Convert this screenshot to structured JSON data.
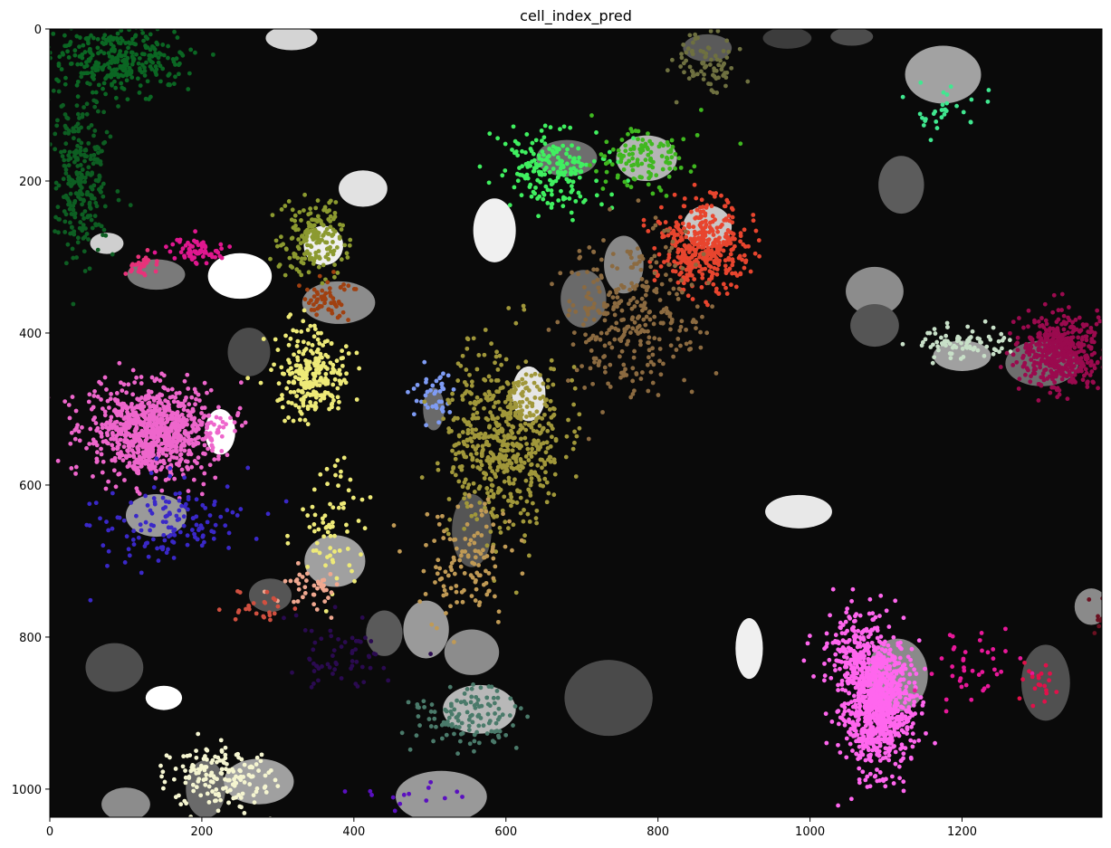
{
  "chart_data": {
    "type": "scatter",
    "title": "cell_index_pred",
    "background_color": "#0a0a0a",
    "xlim": [
      0,
      1384
    ],
    "ylim": [
      1037,
      0
    ],
    "y_inverted": true,
    "grid": false,
    "xticks": [
      0,
      200,
      400,
      600,
      800,
      1000,
      1200
    ],
    "yticks": [
      0,
      200,
      400,
      600,
      800,
      1000
    ],
    "xtick_labels": [
      "0",
      "200",
      "400",
      "600",
      "800",
      "1000",
      "1200"
    ],
    "ytick_labels": [
      "0",
      "200",
      "400",
      "600",
      "800",
      "1000"
    ],
    "cell_masks": [
      {
        "cx": 318,
        "cy": 12,
        "rx": 34,
        "ry": 16,
        "color": "#d4d4d4"
      },
      {
        "cx": 75,
        "cy": 282,
        "rx": 22,
        "ry": 14,
        "color": "#cfcfcf"
      },
      {
        "cx": 140,
        "cy": 323,
        "rx": 38,
        "ry": 20,
        "color": "#7a7a7a"
      },
      {
        "cx": 250,
        "cy": 325,
        "rx": 42,
        "ry": 30,
        "color": "#ffffff"
      },
      {
        "cx": 360,
        "cy": 285,
        "rx": 26,
        "ry": 26,
        "color": "#f0f0f0"
      },
      {
        "cx": 412,
        "cy": 210,
        "rx": 32,
        "ry": 24,
        "color": "#e2e2e2"
      },
      {
        "cx": 380,
        "cy": 360,
        "rx": 48,
        "ry": 28,
        "color": "#8c8c8c"
      },
      {
        "cx": 262,
        "cy": 425,
        "rx": 28,
        "ry": 32,
        "color": "#4a4a4a"
      },
      {
        "cx": 224,
        "cy": 530,
        "rx": 20,
        "ry": 30,
        "color": "#ffffff"
      },
      {
        "cx": 585,
        "cy": 265,
        "rx": 28,
        "ry": 42,
        "color": "#f0f0f0"
      },
      {
        "cx": 680,
        "cy": 170,
        "rx": 40,
        "ry": 24,
        "color": "#6e6e6e"
      },
      {
        "cx": 785,
        "cy": 170,
        "rx": 40,
        "ry": 30,
        "color": "#b5b5b5"
      },
      {
        "cx": 755,
        "cy": 310,
        "rx": 26,
        "ry": 38,
        "color": "#888888"
      },
      {
        "cx": 702,
        "cy": 355,
        "rx": 30,
        "ry": 38,
        "color": "#6a6a6a"
      },
      {
        "cx": 865,
        "cy": 260,
        "rx": 32,
        "ry": 28,
        "color": "#c8c8c8"
      },
      {
        "cx": 865,
        "cy": 25,
        "rx": 32,
        "ry": 18,
        "color": "#5a5a5a"
      },
      {
        "cx": 970,
        "cy": 12,
        "rx": 32,
        "ry": 14,
        "color": "#3c3c3c"
      },
      {
        "cx": 1055,
        "cy": 10,
        "rx": 28,
        "ry": 12,
        "color": "#4c4c4c"
      },
      {
        "cx": 1175,
        "cy": 60,
        "rx": 50,
        "ry": 38,
        "color": "#a2a2a2"
      },
      {
        "cx": 1120,
        "cy": 205,
        "rx": 30,
        "ry": 38,
        "color": "#5c5c5c"
      },
      {
        "cx": 1085,
        "cy": 345,
        "rx": 38,
        "ry": 32,
        "color": "#8c8c8c"
      },
      {
        "cx": 1085,
        "cy": 390,
        "rx": 32,
        "ry": 28,
        "color": "#555555"
      },
      {
        "cx": 1200,
        "cy": 430,
        "rx": 38,
        "ry": 20,
        "color": "#a0a0a0"
      },
      {
        "cx": 1305,
        "cy": 440,
        "rx": 48,
        "ry": 30,
        "color": "#6e6e6e"
      },
      {
        "cx": 505,
        "cy": 500,
        "rx": 14,
        "ry": 28,
        "color": "#6a6a6a"
      },
      {
        "cx": 630,
        "cy": 480,
        "rx": 22,
        "ry": 36,
        "color": "#e6e6e6"
      },
      {
        "cx": 555,
        "cy": 660,
        "rx": 26,
        "ry": 48,
        "color": "#555555"
      },
      {
        "cx": 140,
        "cy": 640,
        "rx": 40,
        "ry": 28,
        "color": "#9a9a9a"
      },
      {
        "cx": 375,
        "cy": 700,
        "rx": 40,
        "ry": 34,
        "color": "#a0a0a0"
      },
      {
        "cx": 290,
        "cy": 745,
        "rx": 28,
        "ry": 22,
        "color": "#555555"
      },
      {
        "cx": 440,
        "cy": 795,
        "rx": 24,
        "ry": 30,
        "color": "#5a5a5a"
      },
      {
        "cx": 495,
        "cy": 790,
        "rx": 30,
        "ry": 38,
        "color": "#9a9a9a"
      },
      {
        "cx": 555,
        "cy": 820,
        "rx": 36,
        "ry": 30,
        "color": "#8c8c8c"
      },
      {
        "cx": 565,
        "cy": 895,
        "rx": 48,
        "ry": 32,
        "color": "#b8b8b8"
      },
      {
        "cx": 735,
        "cy": 880,
        "rx": 58,
        "ry": 50,
        "color": "#4a4a4a"
      },
      {
        "cx": 920,
        "cy": 815,
        "rx": 18,
        "ry": 40,
        "color": "#f0f0f0"
      },
      {
        "cx": 985,
        "cy": 635,
        "rx": 44,
        "ry": 22,
        "color": "#e8e8e8"
      },
      {
        "cx": 1115,
        "cy": 850,
        "rx": 40,
        "ry": 48,
        "color": "#8a8a8a"
      },
      {
        "cx": 1310,
        "cy": 860,
        "rx": 32,
        "ry": 50,
        "color": "#505050"
      },
      {
        "cx": 1370,
        "cy": 760,
        "rx": 22,
        "ry": 24,
        "color": "#8a8a8a"
      },
      {
        "cx": 85,
        "cy": 840,
        "rx": 38,
        "ry": 32,
        "color": "#4e4e4e"
      },
      {
        "cx": 150,
        "cy": 880,
        "rx": 24,
        "ry": 16,
        "color": "#ffffff"
      },
      {
        "cx": 205,
        "cy": 1000,
        "rx": 26,
        "ry": 38,
        "color": "#6a6a6a"
      },
      {
        "cx": 275,
        "cy": 990,
        "rx": 46,
        "ry": 30,
        "color": "#a0a0a0"
      },
      {
        "cx": 100,
        "cy": 1020,
        "rx": 32,
        "ry": 22,
        "color": "#8c8c8c"
      },
      {
        "cx": 515,
        "cy": 1010,
        "rx": 60,
        "ry": 34,
        "color": "#999999"
      }
    ],
    "clusters": [
      {
        "cx": 90,
        "cy": 40,
        "sx": 60,
        "sy": 30,
        "n": 320,
        "color": "#0b6623"
      },
      {
        "cx": 40,
        "cy": 190,
        "sx": 28,
        "sy": 70,
        "n": 280,
        "color": "#0d5e22"
      },
      {
        "cx": 120,
        "cy": 310,
        "sx": 16,
        "sy": 14,
        "n": 30,
        "color": "#e8327a"
      },
      {
        "cx": 195,
        "cy": 292,
        "sx": 26,
        "sy": 12,
        "n": 70,
        "color": "#e0178f"
      },
      {
        "cx": 345,
        "cy": 275,
        "sx": 28,
        "sy": 34,
        "n": 180,
        "color": "#8c9a30"
      },
      {
        "cx": 365,
        "cy": 355,
        "sx": 22,
        "sy": 18,
        "n": 60,
        "color": "#a04010"
      },
      {
        "cx": 345,
        "cy": 455,
        "sx": 30,
        "sy": 36,
        "n": 260,
        "color": "#eeea78"
      },
      {
        "cx": 135,
        "cy": 530,
        "sx": 55,
        "sy": 40,
        "n": 900,
        "color": "#ee66cc"
      },
      {
        "cx": 150,
        "cy": 650,
        "sx": 65,
        "sy": 38,
        "n": 140,
        "color": "#3a28c8"
      },
      {
        "cx": 505,
        "cy": 480,
        "sx": 20,
        "sy": 26,
        "n": 40,
        "color": "#7f9cf5"
      },
      {
        "cx": 600,
        "cy": 540,
        "sx": 50,
        "sy": 75,
        "n": 600,
        "color": "#a0973a"
      },
      {
        "cx": 545,
        "cy": 700,
        "sx": 45,
        "sy": 55,
        "n": 120,
        "color": "#c09a55"
      },
      {
        "cx": 660,
        "cy": 185,
        "sx": 45,
        "sy": 32,
        "n": 200,
        "color": "#40f060"
      },
      {
        "cx": 780,
        "cy": 170,
        "sx": 40,
        "sy": 28,
        "n": 120,
        "color": "#40b820"
      },
      {
        "cx": 860,
        "cy": 285,
        "sx": 38,
        "sy": 38,
        "n": 400,
        "color": "#e8452e"
      },
      {
        "cx": 765,
        "cy": 380,
        "sx": 60,
        "sy": 70,
        "n": 320,
        "color": "#8b6a40"
      },
      {
        "cx": 860,
        "cy": 45,
        "sx": 32,
        "sy": 24,
        "n": 80,
        "color": "#6e7040"
      },
      {
        "cx": 1175,
        "cy": 100,
        "sx": 38,
        "sy": 22,
        "n": 30,
        "color": "#40e890"
      },
      {
        "cx": 1195,
        "cy": 412,
        "sx": 45,
        "sy": 14,
        "n": 80,
        "color": "#c8e0c8"
      },
      {
        "cx": 1330,
        "cy": 425,
        "sx": 35,
        "sy": 30,
        "n": 500,
        "color": "#9a0a4e"
      },
      {
        "cx": 370,
        "cy": 650,
        "sx": 30,
        "sy": 55,
        "n": 70,
        "color": "#eeea78"
      },
      {
        "cx": 345,
        "cy": 730,
        "sx": 28,
        "sy": 18,
        "n": 40,
        "color": "#f0a890"
      },
      {
        "cx": 275,
        "cy": 760,
        "sx": 30,
        "sy": 18,
        "n": 25,
        "color": "#d05040"
      },
      {
        "cx": 380,
        "cy": 820,
        "sx": 45,
        "sy": 35,
        "n": 60,
        "color": "#2a0a50"
      },
      {
        "cx": 1090,
        "cy": 890,
        "sx": 30,
        "sy": 55,
        "n": 900,
        "color": "#ff66ee"
      },
      {
        "cx": 1060,
        "cy": 820,
        "sx": 30,
        "sy": 40,
        "n": 200,
        "color": "#ff66ee"
      },
      {
        "cx": 1210,
        "cy": 840,
        "sx": 40,
        "sy": 30,
        "n": 40,
        "color": "#e8189a"
      },
      {
        "cx": 1300,
        "cy": 860,
        "sx": 25,
        "sy": 25,
        "n": 20,
        "color": "#e0104a"
      },
      {
        "cx": 545,
        "cy": 905,
        "sx": 45,
        "sy": 25,
        "n": 120,
        "color": "#4a7a6a"
      },
      {
        "cx": 225,
        "cy": 985,
        "sx": 45,
        "sy": 30,
        "n": 160,
        "color": "#f5f5d0"
      },
      {
        "cx": 480,
        "cy": 1010,
        "sx": 45,
        "sy": 14,
        "n": 14,
        "color": "#5a10c0"
      },
      {
        "cx": 1375,
        "cy": 765,
        "sx": 8,
        "sy": 16,
        "n": 8,
        "color": "#6a1020"
      }
    ]
  }
}
